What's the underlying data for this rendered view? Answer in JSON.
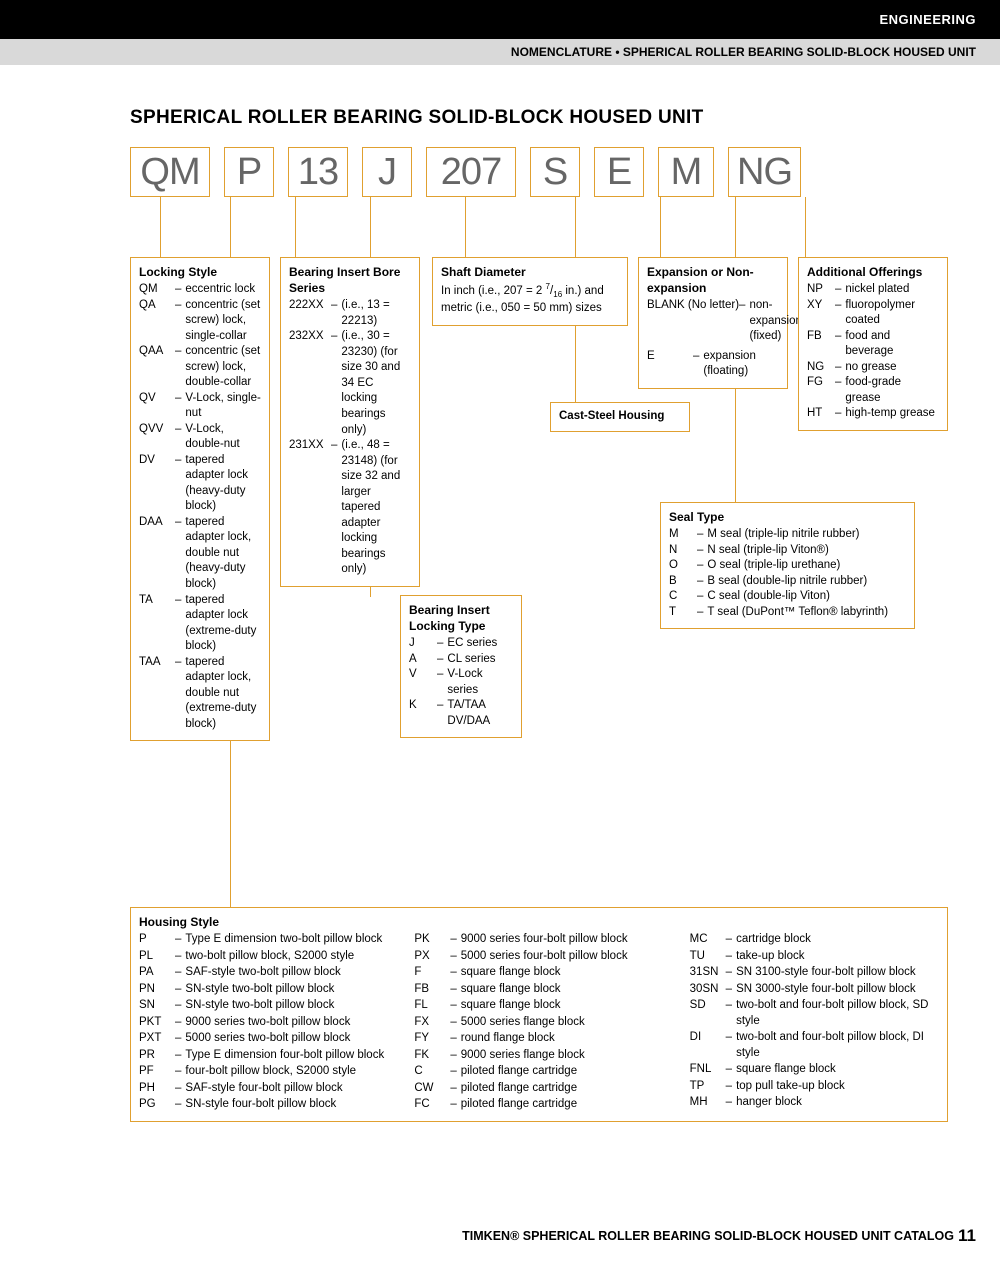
{
  "header": {
    "section": "ENGINEERING",
    "subhead": "NOMENCLATURE • SPHERICAL ROLLER BEARING SOLID-BLOCK HOUSED UNIT"
  },
  "title": "SPHERICAL ROLLER BEARING SOLID-BLOCK HOUSED UNIT",
  "codes": [
    "QM",
    "P",
    "13",
    "J",
    "207",
    "S",
    "E",
    "M",
    "NG"
  ],
  "locking_style": {
    "title": "Locking Style",
    "items": [
      {
        "c": "QM",
        "d": "eccentric lock"
      },
      {
        "c": "QA",
        "d": "concentric (set screw) lock, single-collar"
      },
      {
        "c": "QAA",
        "d": "concentric (set screw) lock, double-collar"
      },
      {
        "c": "QV",
        "d": "V-Lock, single-nut"
      },
      {
        "c": "QVV",
        "d": "V-Lock, double-nut"
      },
      {
        "c": "DV",
        "d": "tapered adapter lock (heavy-duty block)"
      },
      {
        "c": "DAA",
        "d": "tapered adapter lock, double nut (heavy-duty block)"
      },
      {
        "c": "TA",
        "d": "tapered adapter lock (extreme-duty block)"
      },
      {
        "c": "TAA",
        "d": "tapered adapter lock, double nut (extreme-duty block)"
      }
    ]
  },
  "bore_series": {
    "title": "Bearing Insert Bore Series",
    "items": [
      {
        "c": "222XX",
        "d": "(i.e., 13 = 22213)"
      },
      {
        "c": "232XX",
        "d": "(i.e., 30 = 23230) (for size 30 and 34 EC locking bearings only)"
      },
      {
        "c": "231XX",
        "d": "(i.e., 48 = 23148) (for size 32 and larger tapered adapter locking bearings only)"
      }
    ]
  },
  "locking_type": {
    "title": "Bearing Insert Locking Type",
    "items": [
      {
        "c": "J",
        "d": "EC series"
      },
      {
        "c": "A",
        "d": "CL series"
      },
      {
        "c": "V",
        "d": "V-Lock series"
      },
      {
        "c": "K",
        "d": "TA/TAA DV/DAA"
      }
    ]
  },
  "shaft_dia": {
    "title": "Shaft Diameter",
    "text": "In inch (i.e., 207 = 2 7/16 in.) and metric (i.e., 050 = 50 mm) sizes"
  },
  "cast_steel": "Cast-Steel Housing",
  "expansion": {
    "title": "Expansion or Non-expansion",
    "items": [
      {
        "c": "BLANK (No letter)",
        "d": "non-expansion (fixed)"
      },
      {
        "c": "E",
        "d": "expansion (floating)"
      }
    ]
  },
  "seal_type": {
    "title": "Seal Type",
    "items": [
      {
        "c": "M",
        "d": "M seal (triple-lip nitrile rubber)"
      },
      {
        "c": "N",
        "d": "N seal (triple-lip Viton®)"
      },
      {
        "c": "O",
        "d": "O seal (triple-lip urethane)"
      },
      {
        "c": "B",
        "d": "B seal (double-lip nitrile rubber)"
      },
      {
        "c": "C",
        "d": "C seal (double-lip Viton)"
      },
      {
        "c": "T",
        "d": "T seal (DuPont™ Teflon® labyrinth)"
      }
    ]
  },
  "additional": {
    "title": "Additional Offerings",
    "items": [
      {
        "c": "NP",
        "d": "nickel plated"
      },
      {
        "c": "XY",
        "d": "fluoropolymer coated"
      },
      {
        "c": "FB",
        "d": "food and beverage"
      },
      {
        "c": "NG",
        "d": "no grease"
      },
      {
        "c": "FG",
        "d": "food-grade grease"
      },
      {
        "c": "HT",
        "d": "high-temp grease"
      }
    ]
  },
  "housing": {
    "title": "Housing Style",
    "items": [
      {
        "c": "P",
        "d": "Type E dimension two-bolt pillow block"
      },
      {
        "c": "PL",
        "d": "two-bolt pillow block, S2000 style"
      },
      {
        "c": "PA",
        "d": "SAF-style two-bolt pillow block"
      },
      {
        "c": "PN",
        "d": "SN-style two-bolt pillow block"
      },
      {
        "c": "SN",
        "d": "SN-style two-bolt pillow block"
      },
      {
        "c": "PKT",
        "d": "9000 series two-bolt pillow block"
      },
      {
        "c": "PXT",
        "d": "5000 series two-bolt pillow block"
      },
      {
        "c": "PR",
        "d": "Type E dimension four-bolt pillow block"
      },
      {
        "c": "PF",
        "d": "four-bolt pillow block, S2000 style"
      },
      {
        "c": "PH",
        "d": "SAF-style four-bolt pillow block"
      },
      {
        "c": "PG",
        "d": "SN-style four-bolt pillow block"
      },
      {
        "c": "PK",
        "d": "9000 series four-bolt pillow block"
      },
      {
        "c": "PX",
        "d": "5000 series four-bolt pillow block"
      },
      {
        "c": "F",
        "d": "square flange block"
      },
      {
        "c": "FB",
        "d": "square flange block"
      },
      {
        "c": "FL",
        "d": "square flange block"
      },
      {
        "c": "FX",
        "d": "5000 series flange block"
      },
      {
        "c": "FY",
        "d": "round flange block"
      },
      {
        "c": "FK",
        "d": "9000 series flange block"
      },
      {
        "c": "C",
        "d": "piloted flange cartridge"
      },
      {
        "c": "CW",
        "d": "piloted flange cartridge"
      },
      {
        "c": "FC",
        "d": "piloted flange cartridge"
      },
      {
        "c": "MC",
        "d": "cartridge block"
      },
      {
        "c": "TU",
        "d": "take-up block"
      },
      {
        "c": "31SN",
        "d": "SN 3100-style four-bolt pillow block"
      },
      {
        "c": "30SN",
        "d": "SN 3000-style four-bolt pillow block"
      },
      {
        "c": "SD",
        "d": "two-bolt and four-bolt pillow block, SD style"
      },
      {
        "c": "DI",
        "d": "two-bolt and four-bolt pillow block, DI style"
      },
      {
        "c": "FNL",
        "d": "square flange block"
      },
      {
        "c": "TP",
        "d": "top pull take-up block"
      },
      {
        "c": "MH",
        "d": "hanger block"
      }
    ]
  },
  "footer": {
    "brand": "TIMKEN®",
    "text": " SPHERICAL ROLLER BEARING SOLID-BLOCK HOUSED UNIT CATALOG",
    "page": "11"
  }
}
